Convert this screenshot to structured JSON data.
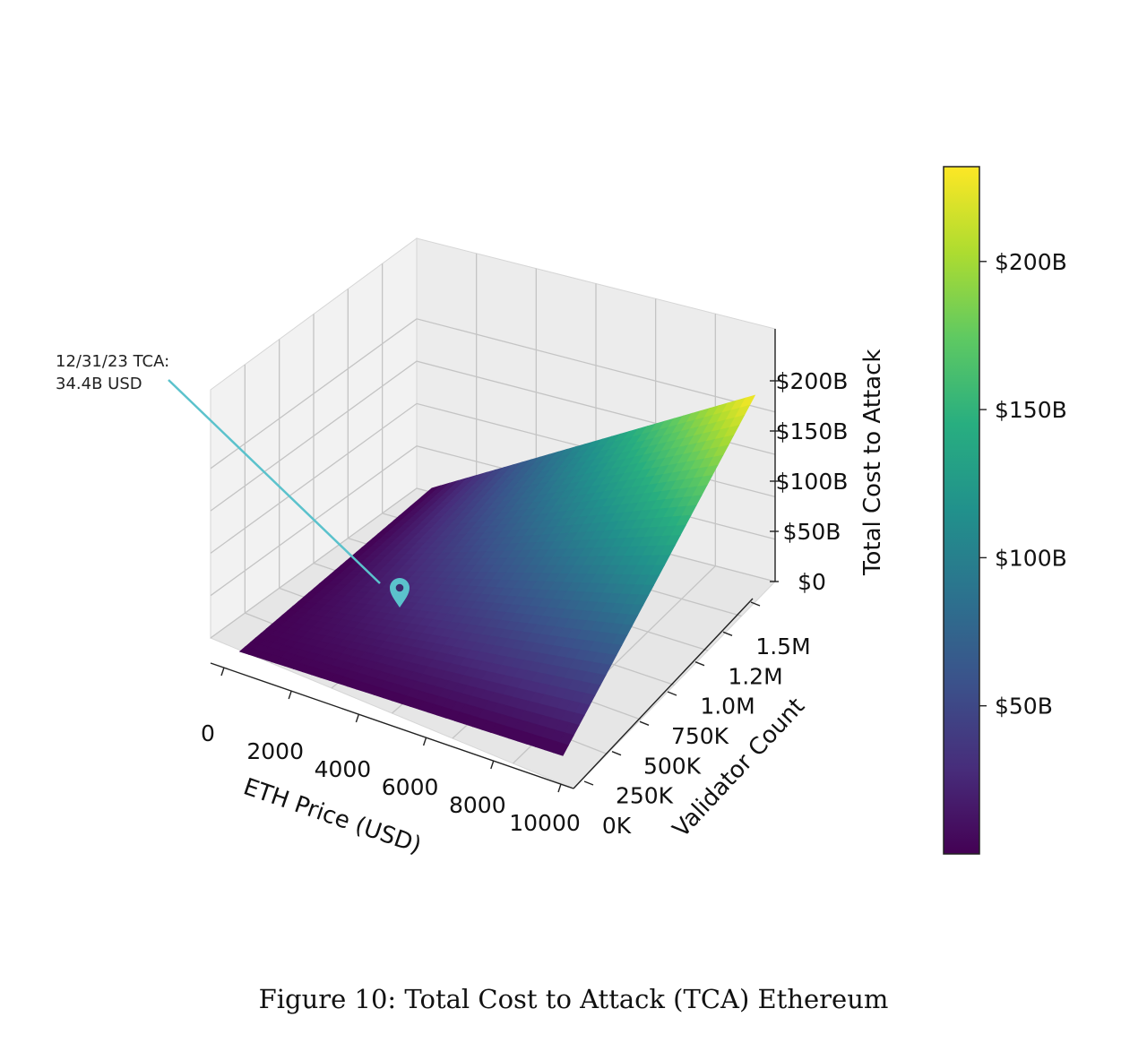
{
  "figure": {
    "caption": "Figure 10: Total Cost to Attack (TCA) Ethereum"
  },
  "annotation": {
    "line1": "12/31/23 TCA:",
    "line2": "34.4B USD",
    "marker_color": "#5bc2cc",
    "marker_icon": "map-pin-icon"
  },
  "chart_data": {
    "type": "surface",
    "title": "",
    "colormap": "viridis",
    "x_axis": {
      "label": "ETH Price (USD)",
      "range": [
        0,
        10000
      ],
      "ticks": [
        0,
        2000,
        4000,
        6000,
        8000,
        10000
      ],
      "tick_labels": [
        "0",
        "2000",
        "4000",
        "6000",
        "8000",
        "10000"
      ]
    },
    "y_axis": {
      "label": "Validator Count",
      "range": [
        0,
        1500000
      ],
      "ticks": [
        0,
        250000,
        500000,
        750000,
        1000000,
        1250000,
        1500000
      ],
      "tick_labels": [
        "0K",
        "250K",
        "500K",
        "750K",
        "1.0M",
        "1.2M",
        "1.5M"
      ]
    },
    "z_axis": {
      "label": "Total Cost to Attack",
      "range": [
        0,
        240
      ],
      "unit": "billion USD",
      "ticks": [
        0,
        50,
        100,
        150,
        200
      ],
      "tick_labels": [
        "$0",
        "$50B",
        "$100B",
        "$150B",
        "$200B"
      ]
    },
    "surface": {
      "description_formula": "z proportional to x * y",
      "corners": [
        {
          "x": 0,
          "y": 0,
          "z": 0
        },
        {
          "x": 10000,
          "y": 0,
          "z": 0
        },
        {
          "x": 0,
          "y": 1500000,
          "z": 0
        },
        {
          "x": 10000,
          "y": 1500000,
          "z": 232
        }
      ]
    },
    "highlight_point": {
      "label": "12/31/23 TCA: 34.4B USD",
      "z": 34.4
    },
    "colorbar": {
      "range": [
        0,
        232
      ],
      "ticks": [
        50,
        100,
        150,
        200
      ],
      "tick_labels": [
        "$50B",
        "$100B",
        "$150B",
        "$200B"
      ]
    },
    "grid": true
  }
}
